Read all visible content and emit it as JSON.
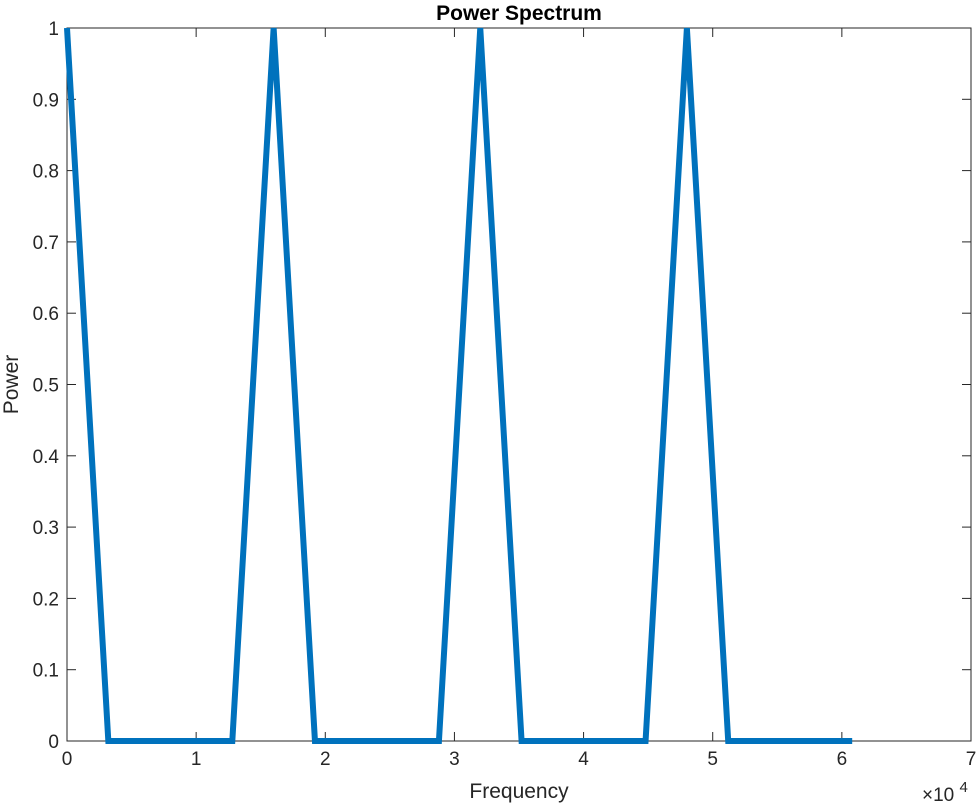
{
  "chart_data": {
    "type": "line",
    "title": "Power Spectrum",
    "xlabel": "Frequency",
    "ylabel": "Power",
    "x_exponent_base": "×10",
    "x_exponent_power": "4",
    "x_scale": 10000,
    "xlim": [
      0,
      70000
    ],
    "ylim": [
      0,
      1
    ],
    "grid": false,
    "legend": "none",
    "x_ticks": [
      0,
      10000,
      20000,
      30000,
      40000,
      50000,
      60000,
      70000
    ],
    "x_tick_labels": [
      "0",
      "1",
      "2",
      "3",
      "4",
      "5",
      "6",
      "7"
    ],
    "y_ticks": [
      0,
      0.1,
      0.2,
      0.3,
      0.4,
      0.5,
      0.6,
      0.7,
      0.8,
      0.9,
      1
    ],
    "y_tick_labels": [
      "0",
      "0.1",
      "0.2",
      "0.3",
      "0.4",
      "0.5",
      "0.6",
      "0.7",
      "0.8",
      "0.9",
      "1"
    ],
    "series": [
      {
        "color": "#0072BD",
        "x": [
          0,
          3200,
          12800,
          16000,
          19200,
          28800,
          32000,
          35200,
          44800,
          48000,
          51200,
          60800
        ],
        "y": [
          1,
          0,
          0,
          1,
          0,
          0,
          1,
          0,
          0,
          1,
          0,
          0
        ]
      }
    ]
  }
}
